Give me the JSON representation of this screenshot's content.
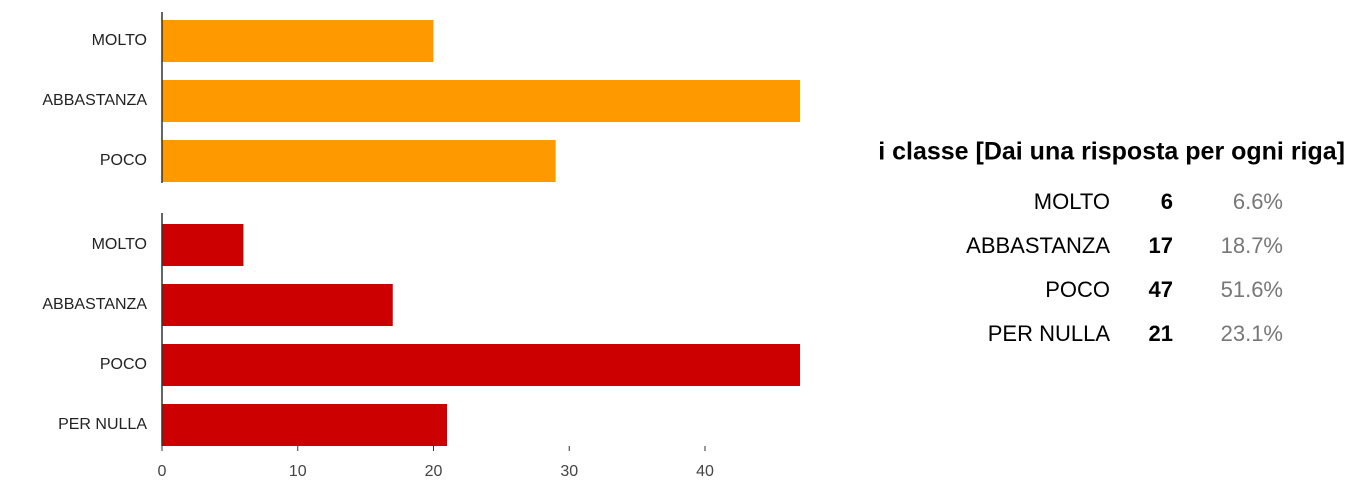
{
  "chart_data": [
    {
      "type": "bar",
      "orientation": "horizontal",
      "categories": [
        "MOLTO",
        "ABBASTANZA",
        "POCO"
      ],
      "values": [
        20,
        47,
        29
      ],
      "color": "#ff9900",
      "xlim": [
        0,
        47
      ]
    },
    {
      "type": "bar",
      "orientation": "horizontal",
      "categories": [
        "MOLTO",
        "ABBASTANZA",
        "POCO",
        "PER NULLA"
      ],
      "values": [
        6,
        17,
        47,
        21
      ],
      "color": "#cc0000",
      "xlim": [
        0,
        47
      ],
      "xticks": [
        0,
        10,
        20,
        30,
        40
      ]
    }
  ],
  "table": {
    "title": "i classe [Dai una risposta per ogni riga]",
    "rows": [
      [
        "MOLTO",
        6,
        "6.6%"
      ],
      [
        "ABBASTANZA",
        17,
        "18.7%"
      ],
      [
        "POCO",
        47,
        "51.6%"
      ],
      [
        "PER NULLA",
        21,
        "23.1%"
      ]
    ]
  }
}
